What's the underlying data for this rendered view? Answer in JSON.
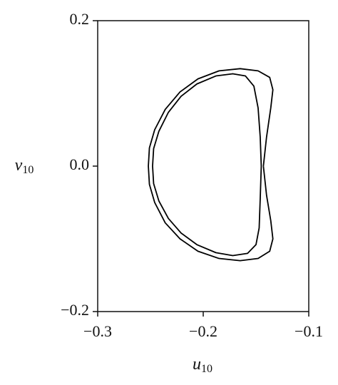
{
  "chart_data": {
    "type": "line",
    "xlabel": {
      "symbol": "u",
      "subscript": "10"
    },
    "ylabel": {
      "symbol": "v",
      "subscript": "10"
    },
    "xlim": [
      -0.3,
      -0.1
    ],
    "ylim": [
      -0.2,
      0.2
    ],
    "xticks": [
      {
        "value": -0.3,
        "label": "−0.3"
      },
      {
        "value": -0.2,
        "label": "−0.2"
      },
      {
        "value": -0.1,
        "label": "−0.1"
      }
    ],
    "yticks": [
      {
        "value": -0.2,
        "label": "−0.2"
      },
      {
        "value": 0,
        "label": "0.0"
      },
      {
        "value": 0.2,
        "label": "0.2"
      }
    ],
    "grid": false,
    "series": [
      {
        "color": "#000000",
        "x": [
          -0.143,
          -0.14,
          -0.136,
          -0.134,
          -0.137,
          -0.148,
          -0.165,
          -0.185,
          -0.205,
          -0.222,
          -0.236,
          -0.246,
          -0.251,
          -0.252,
          -0.251,
          -0.246,
          -0.236,
          -0.222,
          -0.205,
          -0.185,
          -0.165,
          -0.148,
          -0.137,
          -0.134,
          -0.136,
          -0.14,
          -0.143
        ],
        "values": [
          0.0,
          0.04,
          0.08,
          0.105,
          0.122,
          0.131,
          0.134,
          0.131,
          0.12,
          0.102,
          0.078,
          0.05,
          0.025,
          0.0,
          -0.025,
          -0.05,
          -0.078,
          -0.1,
          -0.117,
          -0.127,
          -0.13,
          -0.127,
          -0.117,
          -0.1,
          -0.075,
          -0.04,
          0.0
        ]
      },
      {
        "color": "#000000",
        "x": [
          -0.145,
          -0.146,
          -0.148,
          -0.152,
          -0.16,
          -0.172,
          -0.188,
          -0.206,
          -0.221,
          -0.233,
          -0.242,
          -0.247,
          -0.248,
          -0.247,
          -0.242,
          -0.233,
          -0.221,
          -0.206,
          -0.188,
          -0.172,
          -0.158,
          -0.15,
          -0.147,
          -0.146,
          -0.145
        ],
        "values": [
          0.0,
          0.04,
          0.08,
          0.11,
          0.124,
          0.127,
          0.124,
          0.113,
          0.096,
          0.074,
          0.048,
          0.024,
          0.0,
          -0.024,
          -0.048,
          -0.072,
          -0.092,
          -0.108,
          -0.119,
          -0.123,
          -0.12,
          -0.108,
          -0.085,
          -0.045,
          0.0
        ]
      }
    ]
  }
}
